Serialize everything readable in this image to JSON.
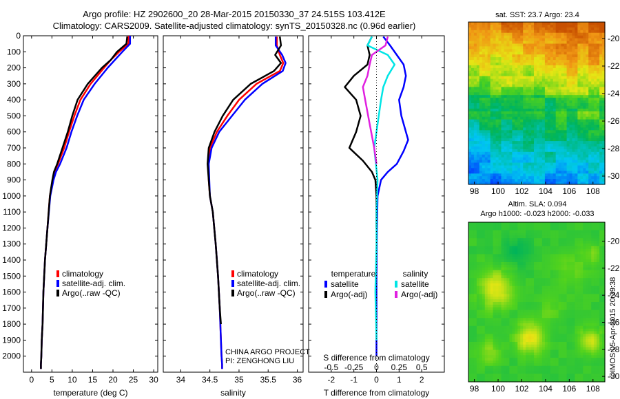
{
  "header": {
    "line1": "Argo profile: HZ 2902600_20 28-Mar-2015 20150330_37 24.515S 103.412E",
    "line2": "Climatology: CARS2009. Satellite-adjusted climatology: synTS_20150328.nc (0.96d earlier)"
  },
  "sst_title": "sat. SST: 23.7 Argo: 23.4",
  "sla_title1": "Altim. SLA: 0.094",
  "sla_title2": "Argo h1000: -0.023 h2000: -0.033",
  "project_note1": "CHINA ARGO PROJECT",
  "project_note2": "PI: ZENGHONG LIU",
  "credit": "©IMOS 05-Apr-2015 20:39:38",
  "colors": {
    "climatology": "#ff0000",
    "satellite": "#0000ff",
    "argo": "#000000",
    "sal_satellite": "#00e5e5",
    "sal_argo": "#e020e0"
  },
  "chart_data": [
    {
      "type": "line",
      "id": "temperature",
      "xlabel": "temperature (deg C)",
      "xlim": [
        -2,
        31
      ],
      "xticks": [
        0,
        5,
        10,
        15,
        20,
        25,
        30
      ],
      "ylim": [
        2100,
        0
      ],
      "yticks": [
        0,
        100,
        200,
        300,
        400,
        500,
        600,
        700,
        800,
        900,
        1000,
        1100,
        1200,
        1300,
        1400,
        1500,
        1600,
        1700,
        1800,
        1900,
        2000
      ],
      "legend": [
        "climatology",
        "satellite-adj. clim.",
        "Argo(..raw -QC)"
      ],
      "series": [
        {
          "name": "climatology",
          "color": "#ff0000",
          "x": [
            23.8,
            23.8,
            21.5,
            19.5,
            17.8,
            14.5,
            12.0,
            10.5,
            9.2,
            8.0,
            6.5,
            5.6,
            5.2,
            4.5,
            3.9,
            3.3,
            2.9,
            2.7,
            2.5,
            2.4,
            2.3,
            2.3
          ],
          "y": [
            0,
            50,
            100,
            150,
            200,
            300,
            400,
            500,
            600,
            700,
            800,
            850,
            900,
            1000,
            1200,
            1400,
            1600,
            1800,
            1900,
            2000,
            2050,
            2080
          ]
        },
        {
          "name": "satellite-adj. clim.",
          "color": "#0000ff",
          "x": [
            24.2,
            24.2,
            22.3,
            20.5,
            18.7,
            15.5,
            12.8,
            11.2,
            9.8,
            8.6,
            7.0,
            6.0,
            5.4,
            4.6,
            3.9,
            3.3,
            2.9,
            2.7,
            2.5,
            2.4,
            2.3,
            2.3
          ],
          "y": [
            0,
            50,
            100,
            150,
            200,
            300,
            400,
            500,
            600,
            700,
            800,
            850,
            900,
            1000,
            1200,
            1400,
            1600,
            1800,
            1900,
            2000,
            2050,
            2080
          ]
        },
        {
          "name": "Argo(..raw -QC)",
          "color": "#000000",
          "x": [
            23.5,
            23.3,
            21.0,
            19.5,
            17.3,
            13.8,
            11.3,
            10.0,
            8.9,
            7.6,
            6.3,
            5.5,
            5.1,
            4.5,
            3.9,
            3.3,
            2.9,
            2.7,
            2.5,
            2.4,
            2.3,
            2.3
          ],
          "y": [
            5,
            50,
            100,
            150,
            200,
            300,
            400,
            500,
            600,
            700,
            800,
            850,
            900,
            1000,
            1200,
            1400,
            1600,
            1800,
            1900,
            2000,
            2050,
            2080
          ]
        }
      ]
    },
    {
      "type": "line",
      "id": "salinity",
      "xlabel": "salinity",
      "xlim": [
        33.7,
        36.1
      ],
      "xticks": [
        34,
        34.5,
        35,
        35.5,
        36
      ],
      "ylim": [
        2100,
        0
      ],
      "legend": [
        "climatology",
        "satellite-adj. clim.",
        "Argo(..raw -QC)"
      ],
      "series": [
        {
          "name": "climatology",
          "color": "#ff0000",
          "x": [
            35.65,
            35.65,
            35.7,
            35.76,
            35.7,
            35.3,
            35.0,
            34.8,
            34.62,
            34.5,
            34.47,
            34.48,
            34.5,
            34.55,
            34.6,
            34.64,
            34.67,
            34.69,
            34.7,
            34.71,
            34.71
          ],
          "y": [
            5,
            60,
            120,
            170,
            220,
            300,
            400,
            500,
            600,
            700,
            800,
            900,
            1000,
            1100,
            1300,
            1500,
            1700,
            1900,
            2000,
            2050,
            2080
          ]
        },
        {
          "name": "satellite-adj. clim.",
          "color": "#0000ff",
          "x": [
            35.63,
            35.63,
            35.74,
            35.8,
            35.75,
            35.4,
            35.1,
            34.88,
            34.66,
            34.53,
            34.48,
            34.49,
            34.5,
            34.55,
            34.6,
            34.64,
            34.67,
            34.69,
            34.7,
            34.71,
            34.71
          ],
          "y": [
            5,
            60,
            120,
            170,
            220,
            300,
            400,
            500,
            600,
            700,
            800,
            900,
            1000,
            1100,
            1300,
            1500,
            1700,
            1900,
            2000,
            2050,
            2080
          ]
        },
        {
          "name": "Argo(..raw -QC)",
          "color": "#000000",
          "x": [
            35.7,
            35.72,
            35.62,
            35.72,
            35.6,
            35.2,
            34.9,
            34.72,
            34.58,
            34.48,
            34.46,
            34.48,
            34.5,
            34.55,
            34.6,
            34.64,
            34.67,
            34.69
          ],
          "y": [
            5,
            60,
            120,
            170,
            220,
            300,
            400,
            500,
            600,
            700,
            800,
            900,
            1000,
            1100,
            1300,
            1500,
            1700,
            1800
          ]
        }
      ]
    },
    {
      "type": "line",
      "id": "difference",
      "xlabel": "T difference from climatology",
      "xlabel2": "S difference from climatology",
      "xlim": [
        -3,
        3
      ],
      "xticks": [
        -2,
        -1,
        0,
        1,
        2
      ],
      "sticks": [
        "-0.5",
        "-0.25",
        "0",
        "0.25",
        "0.5"
      ],
      "ylim": [
        2100,
        0
      ],
      "legend_temperature": "temperature",
      "legend_salinity": "salinity",
      "legend_labels": [
        "satellite",
        "Argo(-adj)",
        "satellite",
        "Argo(-adj)"
      ],
      "series": [
        {
          "name": "T satellite",
          "color": "#0000ff",
          "x": [
            0.3,
            0.6,
            0.9,
            1.2,
            1.3,
            1.2,
            1.0,
            1.1,
            1.3,
            1.4,
            1.2,
            0.9,
            0.5,
            0.2,
            0.05,
            0.02,
            0,
            0,
            0
          ],
          "y": [
            5,
            60,
            120,
            180,
            250,
            320,
            400,
            500,
            600,
            650,
            720,
            800,
            850,
            900,
            1000,
            1200,
            1500,
            1800,
            2000
          ]
        },
        {
          "name": "T Argo(-adj)",
          "color": "#000000",
          "x": [
            -0.2,
            -0.4,
            -0.3,
            -0.4,
            -1.0,
            -1.4,
            -0.9,
            -0.7,
            -0.9,
            -1.2,
            -0.6,
            -0.2,
            -0.05,
            0,
            0
          ],
          "y": [
            5,
            60,
            120,
            180,
            250,
            320,
            400,
            500,
            600,
            700,
            780,
            850,
            900,
            1000,
            1200
          ]
        },
        {
          "name": "S satellite",
          "color": "#00e5e5",
          "x": [
            -0.2,
            -0.4,
            0.5,
            0.8,
            0.5,
            0.3,
            0.2,
            0.1,
            -0.1,
            0.05,
            0,
            0,
            -0.05,
            0
          ],
          "y": [
            5,
            60,
            120,
            180,
            250,
            320,
            400,
            500,
            700,
            900,
            1100,
            1300,
            1600,
            1900
          ]
        },
        {
          "name": "S Argo(-adj)",
          "color": "#e020e0",
          "x": [
            0.5,
            0.4,
            -0.2,
            -0.3,
            -0.4,
            -0.6,
            -0.5,
            -0.3,
            -0.1,
            0
          ],
          "y": [
            5,
            60,
            120,
            180,
            250,
            320,
            400,
            550,
            700,
            800
          ]
        }
      ]
    },
    {
      "type": "heatmap",
      "id": "sst_map",
      "title": "sat. SST: 23.7 Argo: 23.4",
      "xticks": [
        98,
        100,
        102,
        104,
        106,
        108
      ],
      "yticks": [
        -20,
        -22,
        -24,
        -26,
        -28,
        -30
      ],
      "xlim": [
        97.5,
        109
      ],
      "ylim": [
        -30.6,
        -18.8
      ]
    },
    {
      "type": "heatmap",
      "id": "sla_map",
      "title": "Altim. SLA: 0.094",
      "subtitle": "Argo h1000: -0.023 h2000: -0.033",
      "xticks": [
        98,
        100,
        102,
        104,
        106,
        108
      ],
      "yticks": [
        -20,
        -22,
        -24,
        -26,
        -28,
        -30
      ],
      "xlim": [
        97.5,
        109
      ],
      "ylim": [
        -30.4,
        -18.6
      ]
    }
  ]
}
